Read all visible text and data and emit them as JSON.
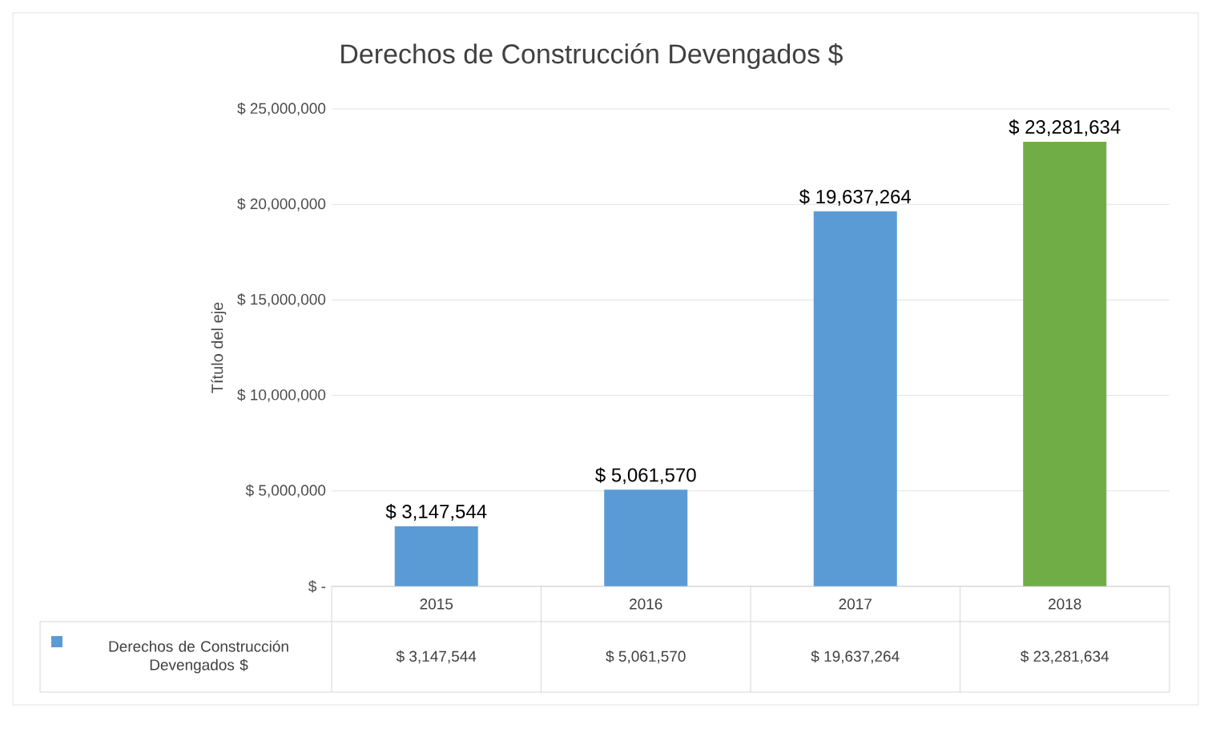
{
  "chart_data": {
    "type": "bar",
    "title": "Derechos de Construcción Devengados $",
    "ylabel": "Título del eje",
    "categories": [
      "2015",
      "2016",
      "2017",
      "2018"
    ],
    "series": [
      {
        "name": "Derechos de Construcción Devengados $",
        "color": "#5b9bd5",
        "colors": [
          "#5b9bd5",
          "#5b9bd5",
          "#5b9bd5",
          "#70ad47"
        ],
        "values": [
          3147544,
          5061570,
          19637264,
          23281634
        ],
        "value_labels": [
          "$ 3,147,544",
          "$ 5,061,570",
          "$ 19,637,264",
          "$ 23,281,634"
        ]
      }
    ],
    "ylim": [
      0,
      25000000
    ],
    "yticks": [
      {
        "value": 0,
        "label": "$ -"
      },
      {
        "value": 5000000,
        "label": "$ 5,000,000"
      },
      {
        "value": 10000000,
        "label": "$ 10,000,000"
      },
      {
        "value": 15000000,
        "label": "$ 15,000,000"
      },
      {
        "value": 20000000,
        "label": "$ 20,000,000"
      },
      {
        "value": 25000000,
        "label": "$ 25,000,000"
      }
    ],
    "grid": "y",
    "legend": "bottom"
  }
}
